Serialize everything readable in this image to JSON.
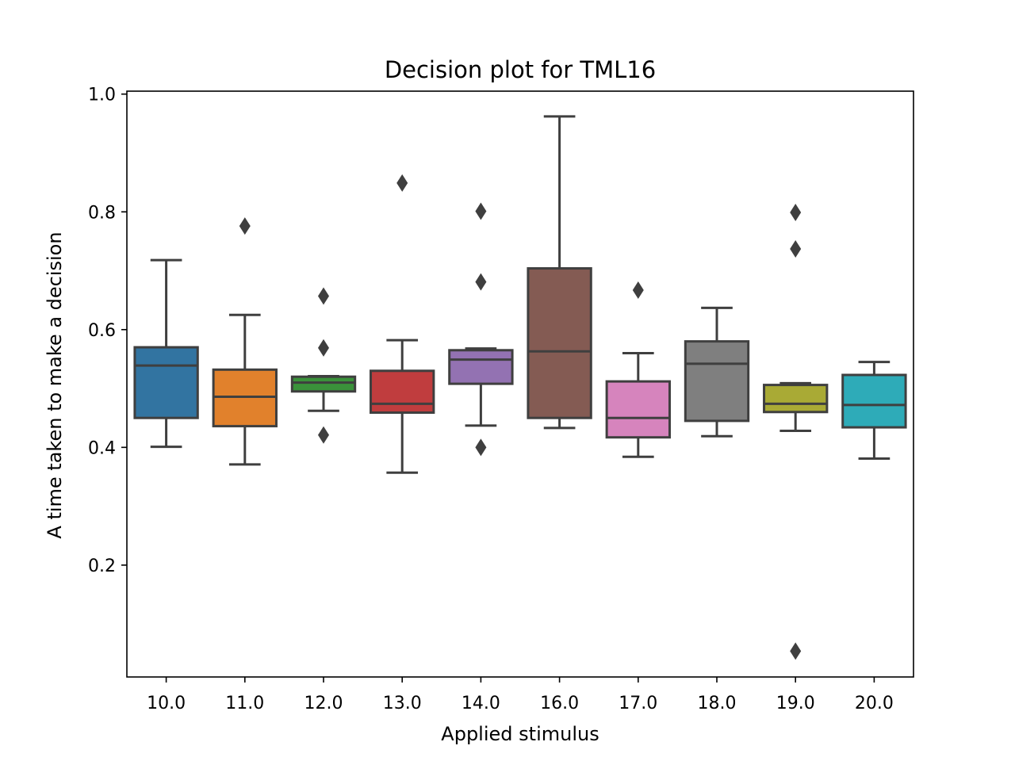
{
  "chart_data": {
    "type": "box",
    "title": "Decision plot for TML16",
    "xlabel": "Applied stimulus",
    "ylabel": "A time taken to make a decision",
    "ylim": [
      0.01,
      1.005
    ],
    "yticks": [
      "0.2",
      "0.4",
      "0.6",
      "0.8",
      "1.0"
    ],
    "grid": false,
    "categories": [
      "10.0",
      "11.0",
      "12.0",
      "13.0",
      "14.0",
      "16.0",
      "17.0",
      "18.0",
      "19.0",
      "20.0"
    ],
    "boxes": [
      {
        "category": "10.0",
        "whisker_low": 0.401,
        "q1": 0.45,
        "median": 0.539,
        "q3": 0.57,
        "whisker_high": 0.718,
        "outliers": [],
        "color": "#3274a1"
      },
      {
        "category": "11.0",
        "whisker_low": 0.371,
        "q1": 0.436,
        "median": 0.486,
        "q3": 0.532,
        "whisker_high": 0.625,
        "outliers": [
          0.776
        ],
        "color": "#e1812c"
      },
      {
        "category": "12.0",
        "whisker_low": 0.462,
        "q1": 0.495,
        "median": 0.51,
        "q3": 0.52,
        "whisker_high": 0.521,
        "outliers": [
          0.657,
          0.569,
          0.421
        ],
        "color": "#3a923a"
      },
      {
        "category": "13.0",
        "whisker_low": 0.357,
        "q1": 0.459,
        "median": 0.474,
        "q3": 0.53,
        "whisker_high": 0.582,
        "outliers": [
          0.849
        ],
        "color": "#c03d3e"
      },
      {
        "category": "14.0",
        "whisker_low": 0.437,
        "q1": 0.508,
        "median": 0.549,
        "q3": 0.565,
        "whisker_high": 0.568,
        "outliers": [
          0.801,
          0.681,
          0.4
        ],
        "color": "#9372b2"
      },
      {
        "category": "16.0",
        "whisker_low": 0.433,
        "q1": 0.45,
        "median": 0.563,
        "q3": 0.704,
        "whisker_high": 0.962,
        "outliers": [],
        "color": "#845b53"
      },
      {
        "category": "17.0",
        "whisker_low": 0.384,
        "q1": 0.417,
        "median": 0.45,
        "q3": 0.512,
        "whisker_high": 0.56,
        "outliers": [
          0.667
        ],
        "color": "#d684bd"
      },
      {
        "category": "18.0",
        "whisker_low": 0.419,
        "q1": 0.445,
        "median": 0.542,
        "q3": 0.58,
        "whisker_high": 0.637,
        "outliers": [],
        "color": "#7f7f7f"
      },
      {
        "category": "19.0",
        "whisker_low": 0.428,
        "q1": 0.46,
        "median": 0.474,
        "q3": 0.506,
        "whisker_high": 0.509,
        "outliers": [
          0.799,
          0.737,
          0.054
        ],
        "color": "#a9aa35"
      },
      {
        "category": "20.0",
        "whisker_low": 0.381,
        "q1": 0.434,
        "median": 0.472,
        "q3": 0.523,
        "whisker_high": 0.545,
        "outliers": [],
        "color": "#2eabb8"
      }
    ]
  }
}
